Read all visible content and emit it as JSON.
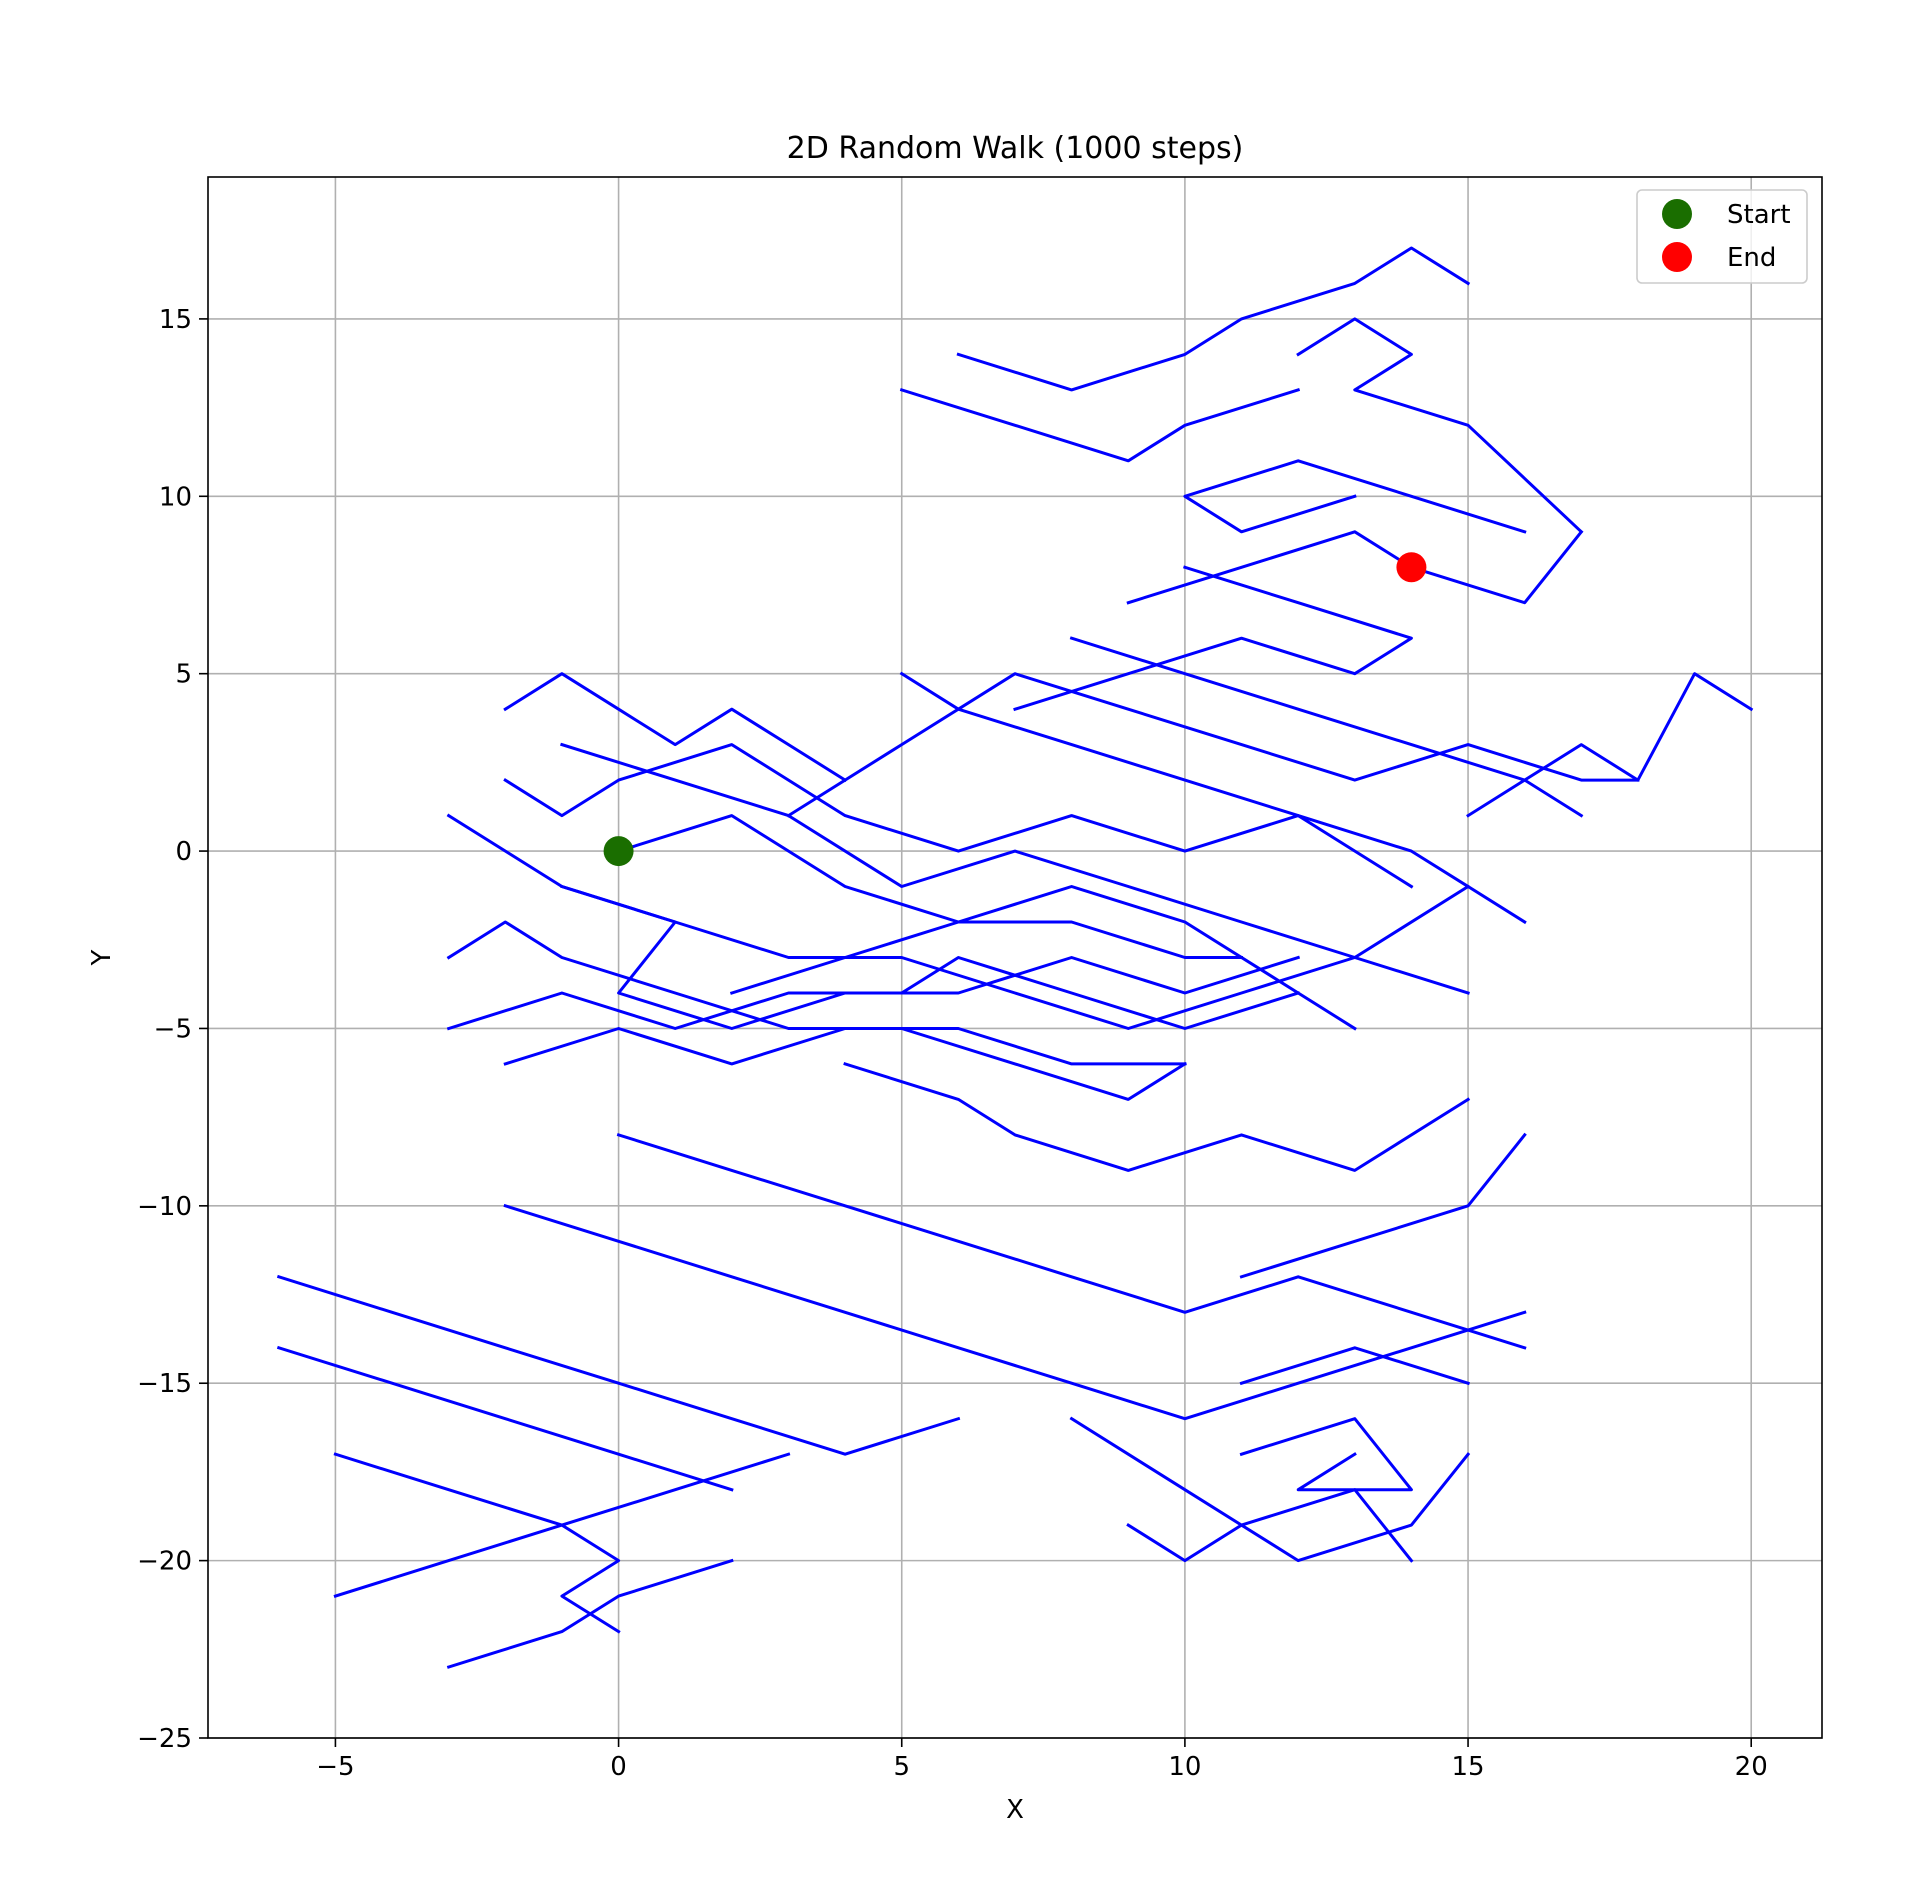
{
  "chart_data": {
    "type": "line",
    "title": "2D Random Walk (1000 steps)",
    "xlabel": "X",
    "ylabel": "Y",
    "xlim": [
      -7.25,
      21.25
    ],
    "ylim": [
      -25,
      19
    ],
    "grid": true,
    "legend_position": "top-right",
    "x_ticks": [
      -5,
      0,
      5,
      10,
      15,
      20
    ],
    "x_tick_labels": [
      "−5",
      "0",
      "5",
      "10",
      "15",
      "20"
    ],
    "y_ticks": [
      -25,
      -20,
      -15,
      -10,
      -5,
      0,
      5,
      10,
      15
    ],
    "y_tick_labels": [
      "−25",
      "−20",
      "−15",
      "−10",
      "−5",
      "0",
      "5",
      "10",
      "15"
    ],
    "series": [
      {
        "color": "#0000ff",
        "note": "walk path drawn as diagonal unit steps; the start point (0,0) and end point (14,8) are labeled",
        "segments": [
          [
            [
              0,
              0
            ],
            [
              2,
              1
            ],
            [
              4,
              -1
            ],
            [
              6,
              -2
            ],
            [
              8,
              -1
            ],
            [
              10,
              -2
            ],
            [
              12,
              -4
            ],
            [
              13,
              -5
            ]
          ],
          [
            [
              -1,
              -1
            ],
            [
              1,
              -2
            ],
            [
              3,
              -3
            ],
            [
              5,
              -3
            ],
            [
              7,
              -4
            ],
            [
              9,
              -5
            ],
            [
              11,
              -4
            ],
            [
              13,
              -3
            ],
            [
              15,
              -1
            ],
            [
              16,
              -2
            ]
          ],
          [
            [
              -3,
              1
            ],
            [
              -1,
              -1
            ],
            [
              1,
              -2
            ],
            [
              0,
              -4
            ],
            [
              2,
              -5
            ],
            [
              4,
              -4
            ],
            [
              6,
              -4
            ],
            [
              8,
              -3
            ],
            [
              10,
              -4
            ],
            [
              12,
              -3
            ]
          ],
          [
            [
              -2,
              4
            ],
            [
              -1,
              5
            ],
            [
              0,
              4
            ],
            [
              1,
              3
            ],
            [
              2,
              4
            ],
            [
              3,
              3
            ],
            [
              4,
              2
            ]
          ],
          [
            [
              -2,
              2
            ],
            [
              -1,
              1
            ],
            [
              0,
              2
            ],
            [
              2,
              3
            ],
            [
              4,
              1
            ],
            [
              6,
              0
            ],
            [
              8,
              1
            ],
            [
              10,
              0
            ],
            [
              12,
              1
            ],
            [
              14,
              0
            ],
            [
              15,
              -1
            ]
          ],
          [
            [
              -1,
              3
            ],
            [
              1,
              2
            ],
            [
              3,
              1
            ],
            [
              5,
              -1
            ],
            [
              7,
              0
            ],
            [
              9,
              -1
            ],
            [
              11,
              -2
            ],
            [
              13,
              -3
            ],
            [
              15,
              -4
            ]
          ],
          [
            [
              -3,
              -3
            ],
            [
              -2,
              -2
            ],
            [
              -1,
              -3
            ],
            [
              1,
              -4
            ],
            [
              3,
              -5
            ],
            [
              5,
              -5
            ],
            [
              7,
              -6
            ],
            [
              9,
              -7
            ],
            [
              10,
              -6
            ]
          ],
          [
            [
              -3,
              -5
            ],
            [
              -1,
              -4
            ],
            [
              1,
              -5
            ],
            [
              3,
              -4
            ],
            [
              5,
              -4
            ],
            [
              6,
              -3
            ],
            [
              8,
              -4
            ],
            [
              10,
              -5
            ],
            [
              12,
              -4
            ]
          ],
          [
            [
              -2,
              -6
            ],
            [
              0,
              -5
            ],
            [
              2,
              -6
            ],
            [
              4,
              -5
            ],
            [
              6,
              -5
            ],
            [
              8,
              -6
            ],
            [
              10,
              -6
            ]
          ],
          [
            [
              2,
              -4
            ],
            [
              4,
              -3
            ],
            [
              6,
              -2
            ],
            [
              8,
              -2
            ],
            [
              10,
              -3
            ],
            [
              11,
              -3
            ]
          ],
          [
            [
              3,
              1
            ],
            [
              5,
              3
            ],
            [
              7,
              5
            ],
            [
              9,
              4
            ],
            [
              11,
              3
            ],
            [
              13,
              2
            ],
            [
              15,
              3
            ],
            [
              17,
              2
            ],
            [
              18,
              2
            ]
          ],
          [
            [
              5,
              5
            ],
            [
              6,
              4
            ],
            [
              8,
              3
            ],
            [
              10,
              2
            ],
            [
              12,
              1
            ],
            [
              14,
              -1
            ]
          ],
          [
            [
              8,
              6
            ],
            [
              10,
              5
            ],
            [
              12,
              4
            ],
            [
              14,
              3
            ],
            [
              16,
              2
            ],
            [
              17,
              1
            ]
          ],
          [
            [
              9,
              7
            ],
            [
              11,
              8
            ],
            [
              13,
              9
            ],
            [
              14,
              8
            ],
            [
              16,
              7
            ],
            [
              17,
              9
            ]
          ],
          [
            [
              10,
              8
            ],
            [
              12,
              7
            ],
            [
              14,
              6
            ],
            [
              13,
              5
            ],
            [
              11,
              6
            ],
            [
              9,
              5
            ],
            [
              7,
              4
            ]
          ],
          [
            [
              13,
              10
            ],
            [
              11,
              9
            ],
            [
              10,
              10
            ],
            [
              12,
              11
            ],
            [
              14,
              10
            ],
            [
              16,
              9
            ]
          ],
          [
            [
              5,
              13
            ],
            [
              7,
              12
            ],
            [
              9,
              11
            ],
            [
              10,
              12
            ],
            [
              12,
              13
            ]
          ],
          [
            [
              6,
              14
            ],
            [
              8,
              13
            ],
            [
              10,
              14
            ],
            [
              11,
              15
            ],
            [
              13,
              16
            ],
            [
              14,
              17
            ],
            [
              15,
              16
            ]
          ],
          [
            [
              12,
              14
            ],
            [
              13,
              15
            ],
            [
              14,
              14
            ],
            [
              13,
              13
            ],
            [
              15,
              12
            ],
            [
              17,
              9
            ]
          ],
          [
            [
              15,
              1
            ],
            [
              17,
              3
            ],
            [
              18,
              2
            ],
            [
              19,
              5
            ],
            [
              20,
              4
            ]
          ],
          [
            [
              4,
              -6
            ],
            [
              6,
              -7
            ],
            [
              7,
              -8
            ],
            [
              9,
              -9
            ],
            [
              11,
              -8
            ],
            [
              13,
              -9
            ],
            [
              15,
              -7
            ]
          ],
          [
            [
              0,
              -8
            ],
            [
              2,
              -9
            ],
            [
              4,
              -10
            ],
            [
              6,
              -11
            ],
            [
              8,
              -12
            ],
            [
              10,
              -13
            ],
            [
              12,
              -12
            ],
            [
              14,
              -13
            ],
            [
              16,
              -14
            ]
          ],
          [
            [
              -2,
              -10
            ],
            [
              0,
              -11
            ],
            [
              2,
              -12
            ],
            [
              4,
              -13
            ],
            [
              6,
              -14
            ],
            [
              8,
              -15
            ],
            [
              10,
              -16
            ],
            [
              12,
              -15
            ],
            [
              14,
              -14
            ],
            [
              16,
              -13
            ]
          ],
          [
            [
              -6,
              -12
            ],
            [
              -4,
              -13
            ],
            [
              -2,
              -14
            ],
            [
              0,
              -15
            ],
            [
              2,
              -16
            ],
            [
              4,
              -17
            ],
            [
              6,
              -16
            ]
          ],
          [
            [
              -6,
              -14
            ],
            [
              -4,
              -15
            ],
            [
              -2,
              -16
            ],
            [
              0,
              -17
            ],
            [
              2,
              -18
            ]
          ],
          [
            [
              -5,
              -17
            ],
            [
              -3,
              -18
            ],
            [
              -1,
              -19
            ],
            [
              1,
              -18
            ],
            [
              3,
              -17
            ]
          ],
          [
            [
              -5,
              -21
            ],
            [
              -3,
              -20
            ],
            [
              -1,
              -19
            ],
            [
              0,
              -20
            ],
            [
              -1,
              -21
            ],
            [
              0,
              -22
            ]
          ],
          [
            [
              -3,
              -23
            ],
            [
              -1,
              -22
            ],
            [
              0,
              -21
            ],
            [
              2,
              -20
            ]
          ],
          [
            [
              8,
              -16
            ],
            [
              10,
              -18
            ],
            [
              12,
              -20
            ],
            [
              14,
              -19
            ],
            [
              15,
              -17
            ]
          ],
          [
            [
              9,
              -19
            ],
            [
              10,
              -20
            ],
            [
              11,
              -19
            ],
            [
              13,
              -18
            ],
            [
              14,
              -20
            ]
          ],
          [
            [
              11,
              -17
            ],
            [
              13,
              -16
            ],
            [
              14,
              -18
            ],
            [
              12,
              -18
            ],
            [
              13,
              -17
            ]
          ],
          [
            [
              11,
              -15
            ],
            [
              13,
              -14
            ],
            [
              15,
              -15
            ]
          ],
          [
            [
              11,
              -12
            ],
            [
              13,
              -11
            ],
            [
              15,
              -10
            ],
            [
              16,
              -8
            ]
          ]
        ]
      }
    ],
    "markers": [
      {
        "name": "Start",
        "x": 0,
        "y": 0,
        "color": "#1a6e00"
      },
      {
        "name": "End",
        "x": 14,
        "y": 8,
        "color": "#ff0000"
      }
    ]
  }
}
